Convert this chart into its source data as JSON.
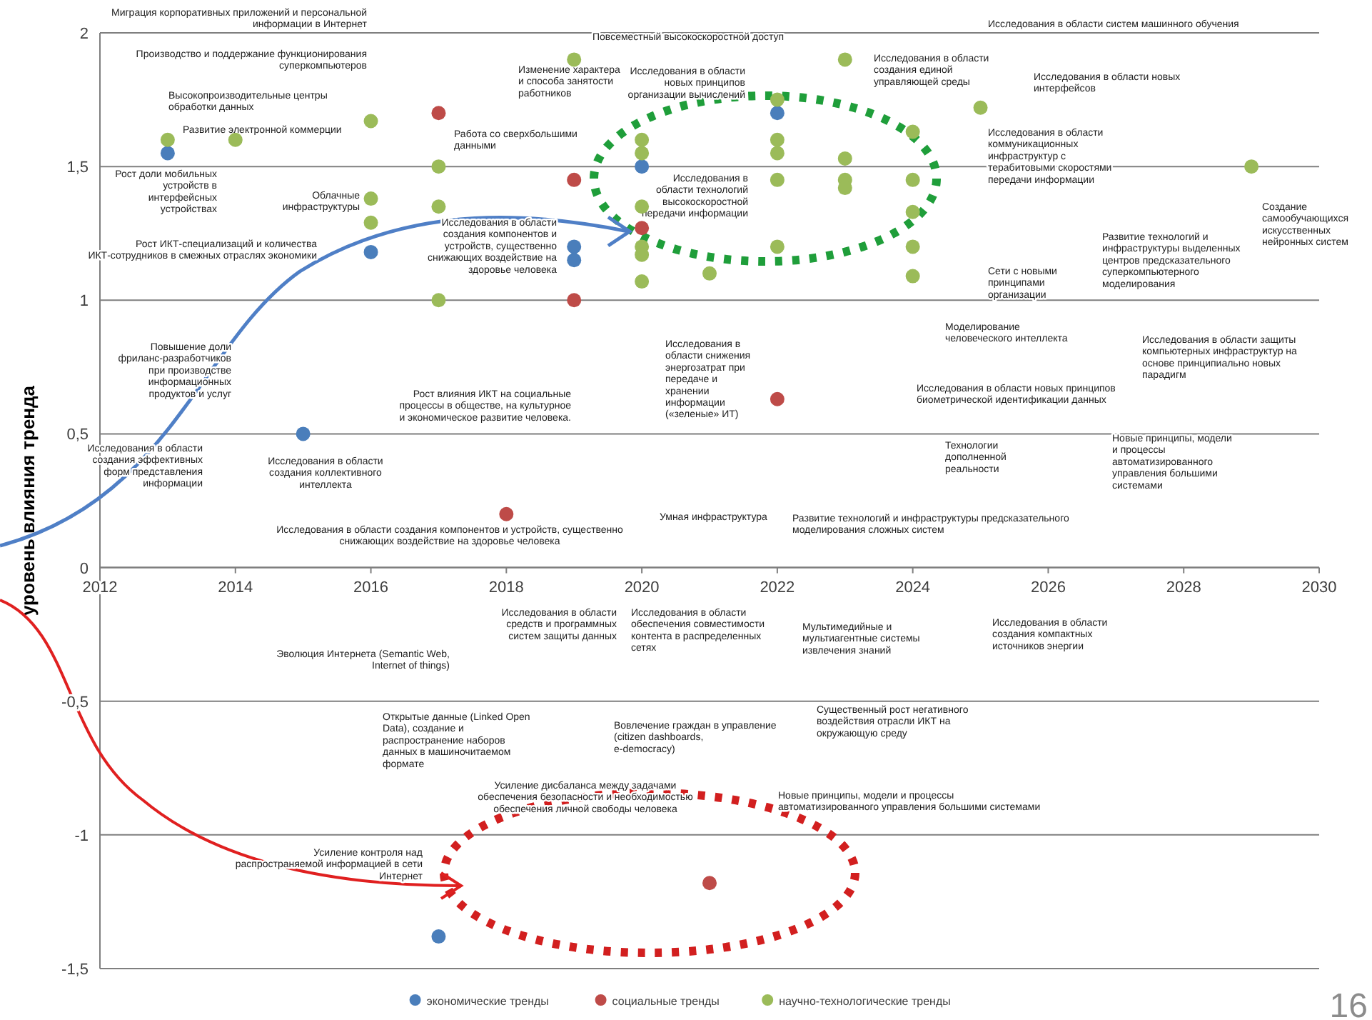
{
  "chart_data": {
    "type": "scatter",
    "ylabel": "уровень влияния тренда",
    "xlim": [
      2012,
      2030
    ],
    "xticks": [
      2012,
      2014,
      2016,
      2018,
      2020,
      2022,
      2024,
      2026,
      2028,
      2030
    ],
    "ylim": [
      -1.5,
      2
    ],
    "yticks": [
      {
        "value": -1.5,
        "label": "-1,5"
      },
      -1,
      {
        "value": -0.5,
        "label": "-0,5"
      },
      0,
      {
        "value": 0.5,
        "label": "0,5"
      },
      1,
      {
        "value": 1.5,
        "label": "1,5"
      },
      2
    ],
    "grid": "y",
    "legend": "bottom",
    "marker": "circle",
    "series": [
      {
        "name": "экономические тренды",
        "color": "#4a7ebb",
        "x": [
          2013,
          2016,
          2015,
          2019,
          2019,
          2020,
          2022,
          2017
        ],
        "values": [
          1.55,
          1.18,
          0.5,
          1.2,
          1.15,
          1.5,
          1.7,
          -1.38
        ]
      },
      {
        "name": "социальные тренды",
        "color": "#be4b48",
        "x": [
          2017,
          2019,
          2019,
          2018,
          2020,
          2022,
          2021
        ],
        "values": [
          1.7,
          1.45,
          1,
          0.2,
          1.27,
          0.63,
          -1.18
        ]
      },
      {
        "name": "научно-технологические тренды",
        "color": "#9bbb59",
        "x": [
          2013,
          2014,
          2016,
          2016,
          2016,
          2017,
          2017,
          2017,
          2019,
          2020,
          2020,
          2020,
          2020,
          2020,
          2020,
          2021,
          2022,
          2022,
          2022,
          2022,
          2022,
          2023,
          2023,
          2023,
          2023,
          2024,
          2024,
          2024,
          2024,
          2024,
          2025,
          2029
        ],
        "values": [
          1.6,
          1.6,
          1.67,
          1.38,
          1.29,
          1.5,
          1.35,
          1,
          1.9,
          1.6,
          1.55,
          1.35,
          1.2,
          1.17,
          1.07,
          1.1,
          1.75,
          1.6,
          1.55,
          1.45,
          1.2,
          1.9,
          1.53,
          1.45,
          1.42,
          1.63,
          1.45,
          1.33,
          1.2,
          1.09,
          1.72,
          1.5
        ]
      }
    ],
    "annotations": [
      "Миграция корпоративных приложений и персональной информации в Интернет",
      "Производство и поддержание функционирования суперкомпьютеров",
      "Высокопроизводительные центры обработки данных",
      "Развитие электронной коммерции",
      "Рост доли мобильных устройств в интерфейсных устройствах",
      "Облачные инфраструктуры",
      "Рост ИКТ-специализаций и количества ИКТ-сотрудников в смежных отраслях экономики",
      "Повышение доли фриланс-разработчиков при производстве информационных продуктов и услуг",
      "Исследования в области создания эффективных форм представления информации",
      "Исследования в области создания коллективного интеллекта",
      "Исследования в области создания компонентов и устройств, существенно снижающих воздействие на здоровье человека",
      "Изменение характера и способа занятости работников",
      "Работа со сверхбольшими данными",
      "Исследования в области создания компонентов и устройств, существенно снижающих воздействие на здоровье человека",
      "Рост влияния ИКТ на социальные процессы в обществе, на культурное и экономическое развитие человека.",
      "Повсеместный высокоскоростной доступ",
      "Исследования в области новых принципов организации вычислений",
      "Исследования в области технологий высокоскоростной передачи информации",
      "Исследования в области снижения энергозатрат при передаче и хранении информации («зеленые» ИТ)",
      "Умная инфраструктура",
      "Развитие технологий и инфраструктуры предсказательного моделирования сложных систем",
      "Исследования в области систем машинного обучения",
      "Исследования в области создания единой управляющей среды",
      "Исследования в области новых интерфейсов",
      "Исследования в области коммуникационных инфраструктур с терабитовыми скоростями передачи информации",
      "Сети с новыми принципами организации",
      "Развитие технологий и инфраструктуры выделенных центров предсказательного суперкомпьютерного моделирования",
      "Создание самообучающихся искусственных нейронных систем",
      "Моделирование человеческого интеллекта",
      "Исследования в области защиты компьютерных инфраструктур на основе принципиально новых парадигм",
      "Исследования в области новых принципов биометрической идентификации данных",
      "Технологии дополненной реальности",
      "Новые принципы, модели и процессы автоматизированного управления большими системами",
      "Эволюция Интернета (Semantic Web, Internet of things)",
      "Исследования в области средств и программных систем защиты данных",
      "Исследования в области обеспечения совместимости контента в распределенных сетях",
      "Мультимедийные и мультиагентные системы извлечения знаний",
      "Исследования в области создания компактных источников энергии",
      "Открытые данные (Linked Open Data), создание и распространение наборов данных в машиночитаемом формате",
      "Вовлечение граждан в управление (citizen dashboards, e-democracy)",
      "Существенный рост негативного воздействия отрасли ИКТ на окружающую среду",
      "Усиление дисбаланса между задачами обеспечения безопасности и необходимостью обеспечения личной свободы человека",
      "Новые принципы, модели и процессы автоматизированного управления большими системами",
      "Усиление контроля над распространяемой информацией в сети Интернет",
      "16"
    ]
  }
}
